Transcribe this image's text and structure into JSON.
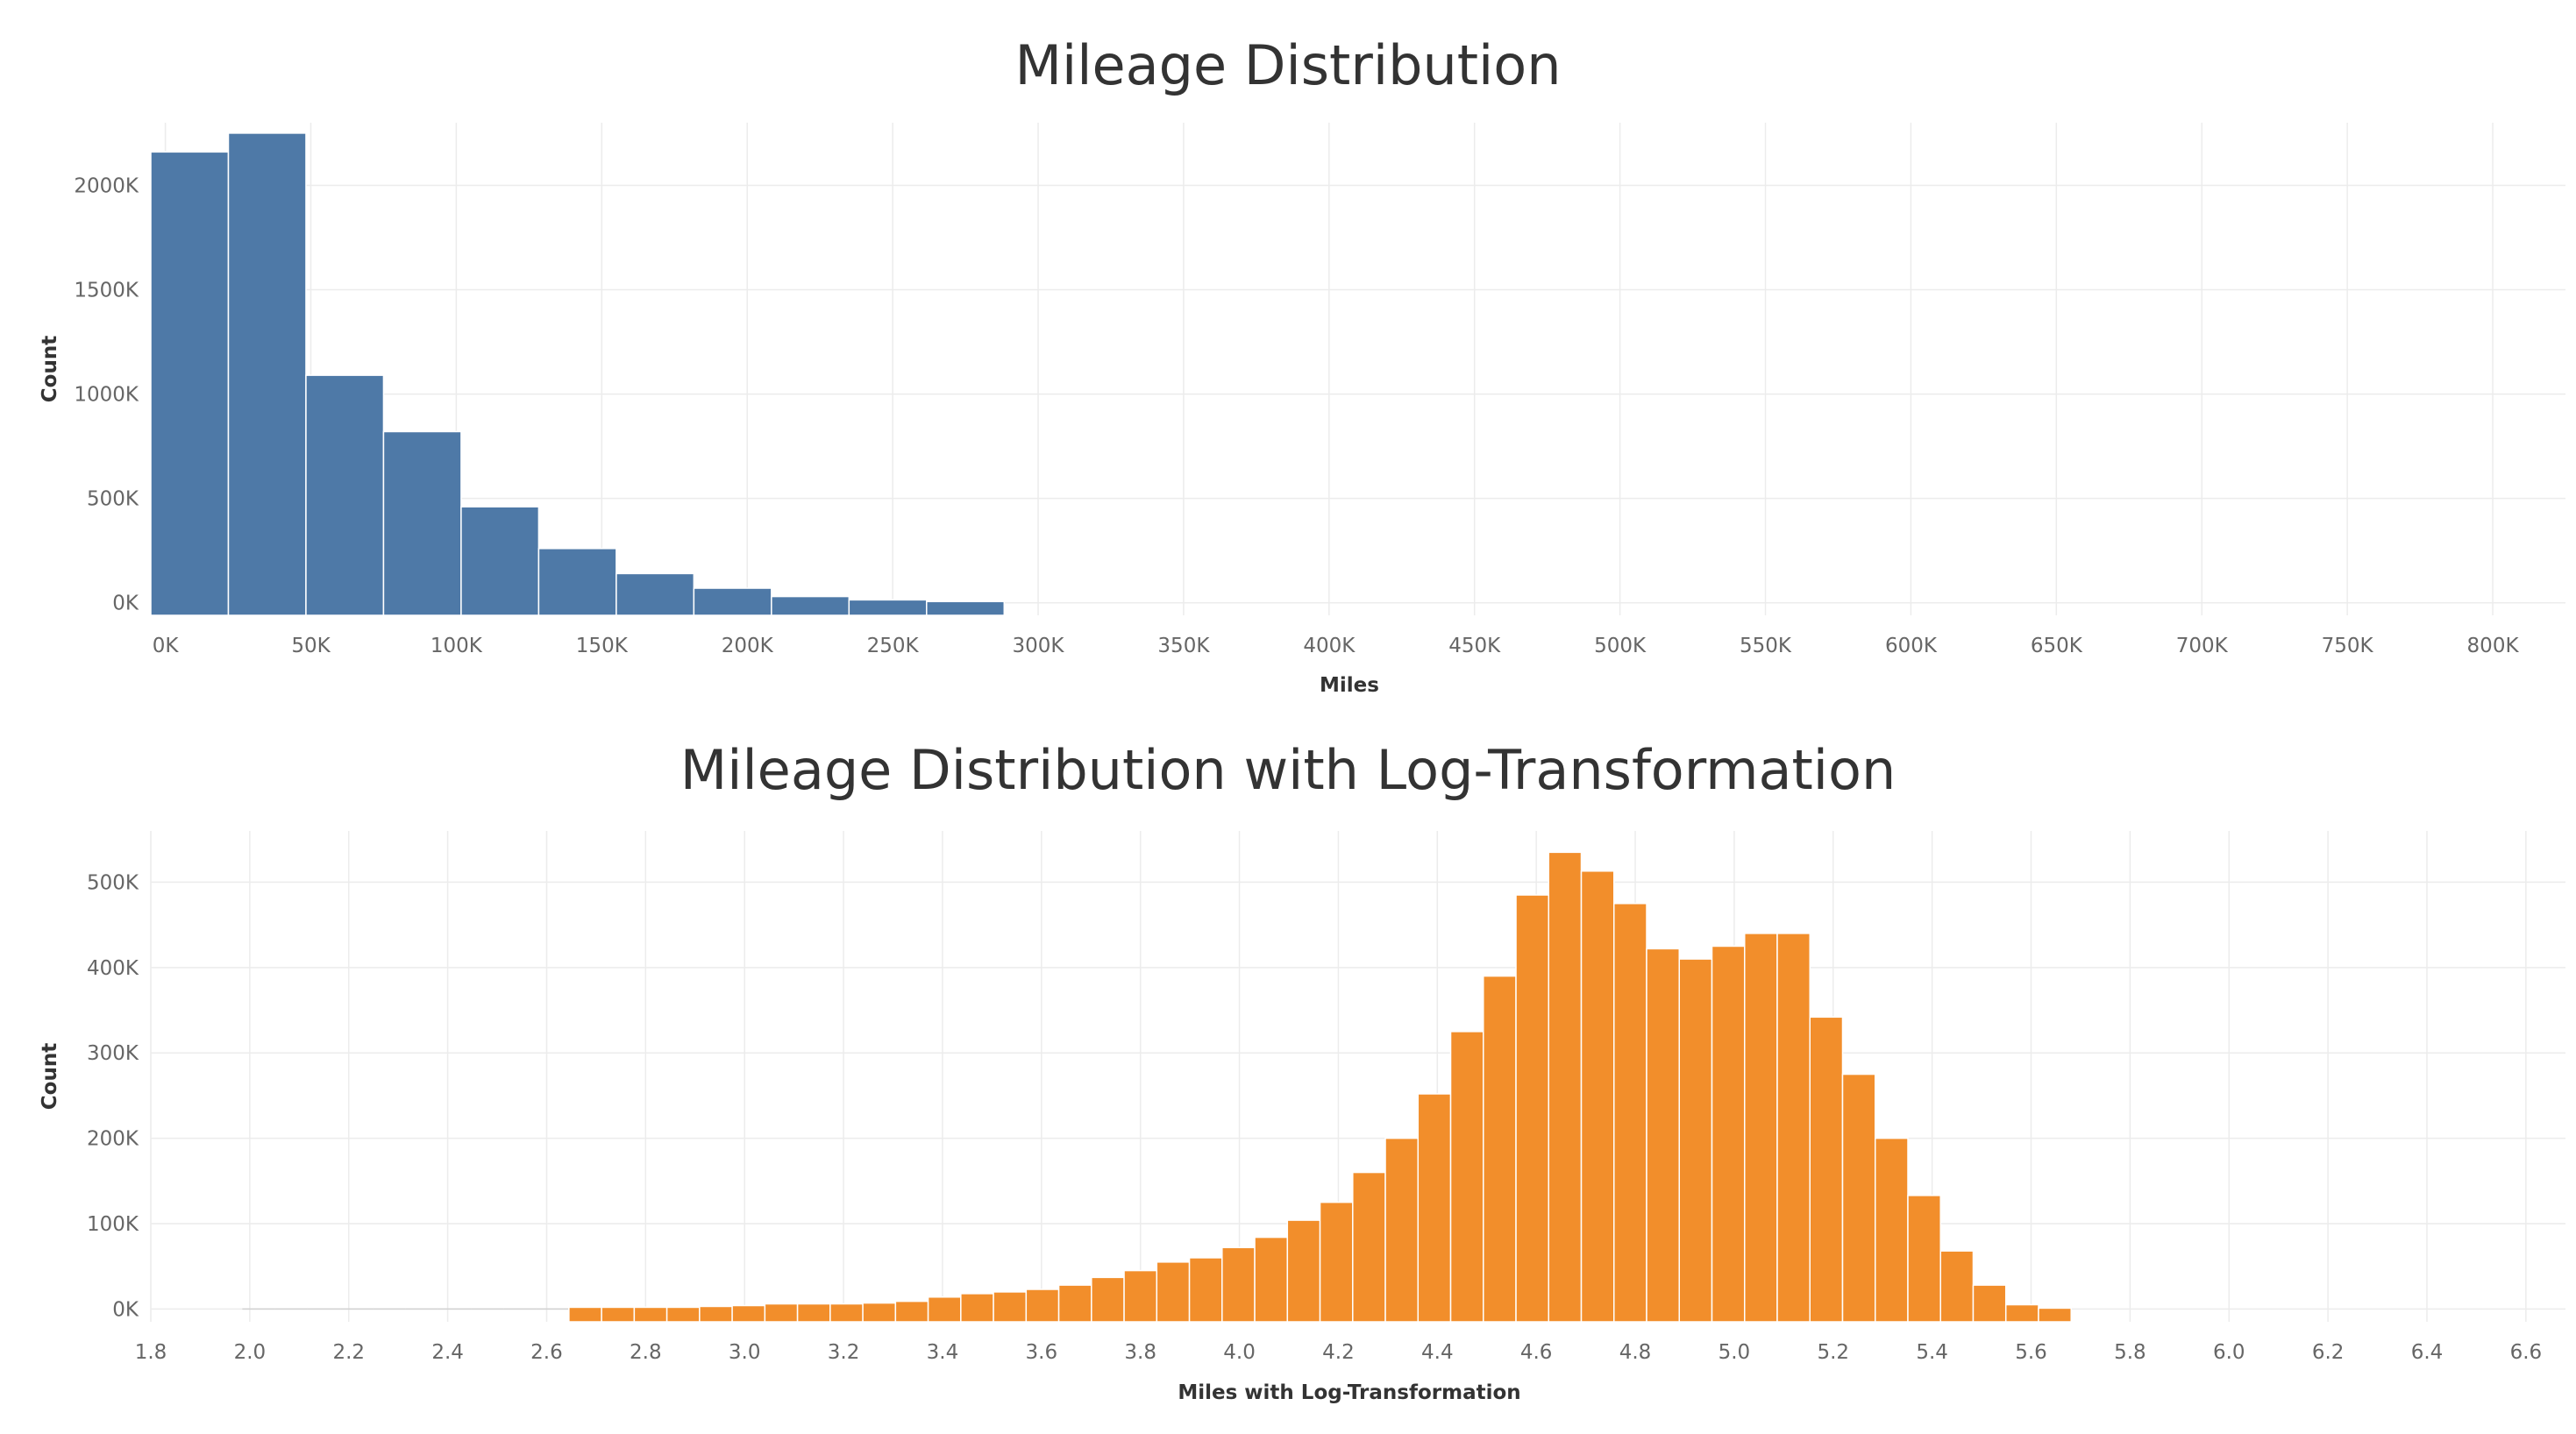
{
  "chart_data": [
    {
      "type": "bar",
      "title": "Mileage Distribution",
      "xlabel": "Miles",
      "ylabel": "Count",
      "xlim": [
        -5000,
        825000
      ],
      "ylim": [
        -60000,
        2300000
      ],
      "grid": true,
      "bin_width": 26666,
      "x_ticks": [
        {
          "v": 0,
          "label": "0K"
        },
        {
          "v": 50000,
          "label": "50K"
        },
        {
          "v": 100000,
          "label": "100K"
        },
        {
          "v": 150000,
          "label": "150K"
        },
        {
          "v": 200000,
          "label": "200K"
        },
        {
          "v": 250000,
          "label": "250K"
        },
        {
          "v": 300000,
          "label": "300K"
        },
        {
          "v": 350000,
          "label": "350K"
        },
        {
          "v": 400000,
          "label": "400K"
        },
        {
          "v": 450000,
          "label": "450K"
        },
        {
          "v": 500000,
          "label": "500K"
        },
        {
          "v": 550000,
          "label": "550K"
        },
        {
          "v": 600000,
          "label": "600K"
        },
        {
          "v": 650000,
          "label": "650K"
        },
        {
          "v": 700000,
          "label": "700K"
        },
        {
          "v": 750000,
          "label": "750K"
        },
        {
          "v": 800000,
          "label": "800K"
        }
      ],
      "y_ticks": [
        {
          "v": 0,
          "label": "0K"
        },
        {
          "v": 500000,
          "label": "500K"
        },
        {
          "v": 1000000,
          "label": "1000K"
        },
        {
          "v": 1500000,
          "label": "1500K"
        },
        {
          "v": 2000000,
          "label": "2000K"
        }
      ],
      "bins": [
        {
          "x0": -5000,
          "x1": 21666,
          "count": 2160000
        },
        {
          "x0": 21666,
          "x1": 48332,
          "count": 2250000
        },
        {
          "x0": 48332,
          "x1": 74998,
          "count": 1090000
        },
        {
          "x0": 74998,
          "x1": 101664,
          "count": 820000
        },
        {
          "x0": 101664,
          "x1": 128330,
          "count": 460000
        },
        {
          "x0": 128330,
          "x1": 154996,
          "count": 260000
        },
        {
          "x0": 154996,
          "x1": 181662,
          "count": 140000
        },
        {
          "x0": 181662,
          "x1": 208328,
          "count": 70000
        },
        {
          "x0": 208328,
          "x1": 234994,
          "count": 30000
        },
        {
          "x0": 234994,
          "x1": 261660,
          "count": 14000
        },
        {
          "x0": 261660,
          "x1": 288326,
          "count": 6000
        }
      ]
    },
    {
      "type": "bar",
      "title": "Mileage Distribution with Log-Transformation",
      "xlabel": "Miles with Log-Transformation",
      "ylabel": "Count",
      "xlim": [
        1.8,
        6.68
      ],
      "ylim": [
        -15000,
        560000
      ],
      "grid": true,
      "bin_width": 0.066,
      "x_ticks": [
        {
          "v": 1.8,
          "label": "1.8"
        },
        {
          "v": 2.0,
          "label": "2.0"
        },
        {
          "v": 2.2,
          "label": "2.2"
        },
        {
          "v": 2.4,
          "label": "2.4"
        },
        {
          "v": 2.6,
          "label": "2.6"
        },
        {
          "v": 2.8,
          "label": "2.8"
        },
        {
          "v": 3.0,
          "label": "3.0"
        },
        {
          "v": 3.2,
          "label": "3.2"
        },
        {
          "v": 3.4,
          "label": "3.4"
        },
        {
          "v": 3.6,
          "label": "3.6"
        },
        {
          "v": 3.8,
          "label": "3.8"
        },
        {
          "v": 4.0,
          "label": "4.0"
        },
        {
          "v": 4.2,
          "label": "4.2"
        },
        {
          "v": 4.4,
          "label": "4.4"
        },
        {
          "v": 4.6,
          "label": "4.6"
        },
        {
          "v": 4.8,
          "label": "4.8"
        },
        {
          "v": 5.0,
          "label": "5.0"
        },
        {
          "v": 5.2,
          "label": "5.2"
        },
        {
          "v": 5.4,
          "label": "5.4"
        },
        {
          "v": 5.6,
          "label": "5.6"
        },
        {
          "v": 5.8,
          "label": "5.8"
        },
        {
          "v": 6.0,
          "label": "6.0"
        },
        {
          "v": 6.2,
          "label": "6.2"
        },
        {
          "v": 6.4,
          "label": "6.4"
        },
        {
          "v": 6.6,
          "label": "6.6"
        }
      ],
      "y_ticks": [
        {
          "v": 0,
          "label": "0K"
        },
        {
          "v": 100000,
          "label": "100K"
        },
        {
          "v": 200000,
          "label": "200K"
        },
        {
          "v": 300000,
          "label": "300K"
        },
        {
          "v": 400000,
          "label": "400K"
        },
        {
          "v": 500000,
          "label": "500K"
        }
      ],
      "bins_start": 1.985,
      "counts": [
        0,
        0,
        0,
        0,
        0,
        0,
        0,
        0,
        0,
        0,
        2000,
        2000,
        2000,
        2000,
        3000,
        4000,
        6000,
        6000,
        6000,
        7000,
        9000,
        14000,
        18000,
        20000,
        23000,
        28000,
        37000,
        45000,
        55000,
        60000,
        72000,
        84000,
        104000,
        125000,
        160000,
        200000,
        252000,
        325000,
        390000,
        485000,
        535000,
        513000,
        475000,
        422000,
        410000,
        425000,
        440000,
        440000,
        342000,
        275000,
        200000,
        133000,
        68000,
        28000,
        5000,
        1000
      ]
    }
  ]
}
